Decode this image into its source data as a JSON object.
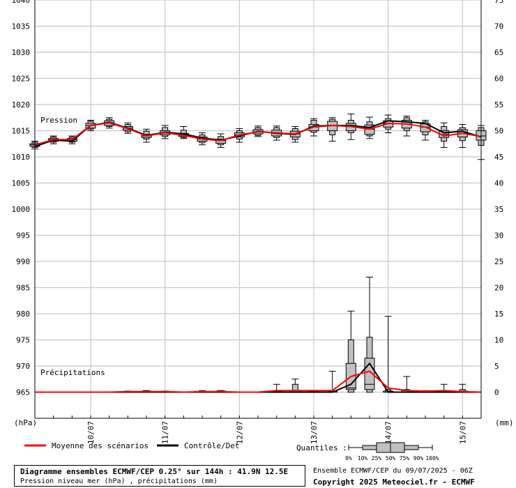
{
  "chart_data": {
    "type": "box",
    "title": "Diagramme ensembles ECMWF/CEP 0.25° sur 144h : 41.9N 12.5E",
    "subtitle": "Pression niveau mer (hPa) , précipitations (mm)",
    "run_info": "Ensemble ECMWF/CEP du 09/07/2025 - 06Z",
    "copyright": "Copyright 2025 Meteociel.fr - ECMWF",
    "left_axis": {
      "unit_label": "(hPa)",
      "range": [
        960,
        1040
      ],
      "ticks": [
        "1040",
        "1035",
        "1030",
        "1025",
        "1020",
        "1015",
        "1010",
        "1005",
        "1000",
        "995",
        "990",
        "985",
        "980",
        "975",
        "970",
        "965"
      ]
    },
    "right_axis": {
      "unit_label": "(mm)",
      "range": [
        -5,
        75
      ],
      "ticks": [
        "75",
        "70",
        "65",
        "60",
        "55",
        "50",
        "45",
        "40",
        "35",
        "30",
        "25",
        "20",
        "15",
        "10",
        "5",
        "0"
      ]
    },
    "x_axis": {
      "range_hours": [
        0,
        144
      ],
      "date_labels": [
        {
          "label": "10/07",
          "hour": 18
        },
        {
          "label": "11/07",
          "hour": 42
        },
        {
          "label": "12/07",
          "hour": 66
        },
        {
          "label": "13/07",
          "hour": 90
        },
        {
          "label": "14/07",
          "hour": 114
        },
        {
          "label": "15/07",
          "hour": 138
        }
      ]
    },
    "panel_labels": {
      "pressure": "Pression",
      "precip": "Précipitations"
    },
    "grid": true,
    "legend": {
      "mean_label": "Moyenne des scénarios",
      "mean_color": "#ff0000",
      "control_label": "Contrôle/Det",
      "control_color": "#000000",
      "quantiles_label": "Quantiles :",
      "quantile_ticks": [
        "0%",
        "10%",
        "25%",
        "50%",
        "75%",
        "90%",
        "100%"
      ]
    },
    "box_color": "#c0c0c0",
    "pressure": {
      "hours": [
        0,
        6,
        12,
        18,
        24,
        30,
        36,
        42,
        48,
        54,
        60,
        66,
        72,
        78,
        84,
        90,
        96,
        102,
        108,
        114,
        120,
        126,
        132,
        138,
        144
      ],
      "mean": [
        1012.3,
        1013.3,
        1013.3,
        1016.0,
        1016.5,
        1015.4,
        1014.0,
        1014.6,
        1014.1,
        1013.4,
        1013.1,
        1014.2,
        1014.8,
        1014.6,
        1014.4,
        1015.7,
        1016.0,
        1015.8,
        1015.3,
        1016.4,
        1016.3,
        1015.7,
        1014.0,
        1014.5,
        1013.9
      ],
      "control": [
        1012.0,
        1013.2,
        1013.0,
        1016.0,
        1016.6,
        1015.5,
        1014.1,
        1014.7,
        1014.4,
        1013.6,
        1013.2,
        1014.0,
        1014.9,
        1014.5,
        1014.3,
        1015.9,
        1016.0,
        1016.0,
        1015.6,
        1016.9,
        1016.7,
        1016.4,
        1014.6,
        1014.9,
        1013.8
      ],
      "q0": [
        1011.5,
        1012.5,
        1012.5,
        1015.0,
        1015.5,
        1014.5,
        1012.8,
        1013.5,
        1013.5,
        1012.3,
        1011.8,
        1012.8,
        1013.9,
        1013.2,
        1012.8,
        1014.0,
        1013.0,
        1013.3,
        1013.5,
        1014.6,
        1014.0,
        1013.2,
        1011.8,
        1011.8,
        1009.5
      ],
      "q10": [
        1011.8,
        1012.8,
        1012.8,
        1015.3,
        1015.8,
        1014.8,
        1013.4,
        1013.9,
        1013.7,
        1012.7,
        1012.3,
        1013.4,
        1014.1,
        1013.7,
        1013.3,
        1014.7,
        1014.2,
        1014.6,
        1014.0,
        1015.3,
        1015.0,
        1014.2,
        1013.0,
        1013.1,
        1012.2
      ],
      "q25": [
        1012.0,
        1013.0,
        1013.0,
        1015.5,
        1016.0,
        1015.1,
        1013.7,
        1014.2,
        1013.9,
        1013.0,
        1012.6,
        1013.8,
        1014.4,
        1014.0,
        1013.8,
        1015.0,
        1015.0,
        1015.0,
        1014.3,
        1015.7,
        1015.5,
        1014.8,
        1013.7,
        1013.8,
        1013.2
      ],
      "median": [
        1012.3,
        1013.3,
        1013.3,
        1016.0,
        1016.5,
        1015.5,
        1014.0,
        1014.6,
        1014.1,
        1013.4,
        1013.1,
        1014.2,
        1014.8,
        1014.6,
        1014.4,
        1015.7,
        1016.0,
        1015.8,
        1015.3,
        1016.4,
        1016.3,
        1015.7,
        1014.3,
        1014.5,
        1014.0
      ],
      "q75": [
        1012.5,
        1013.5,
        1013.5,
        1016.4,
        1016.9,
        1015.8,
        1014.3,
        1015.0,
        1014.5,
        1013.8,
        1013.4,
        1014.6,
        1015.2,
        1015.1,
        1014.9,
        1016.2,
        1016.8,
        1016.4,
        1016.1,
        1016.9,
        1017.0,
        1016.3,
        1015.0,
        1015.2,
        1015.0
      ],
      "q90": [
        1012.8,
        1013.8,
        1013.8,
        1016.8,
        1017.2,
        1016.2,
        1014.9,
        1015.6,
        1015.1,
        1014.2,
        1013.9,
        1015.0,
        1015.6,
        1015.6,
        1015.4,
        1017.0,
        1017.2,
        1017.0,
        1016.7,
        1017.3,
        1017.5,
        1016.7,
        1015.8,
        1015.6,
        1015.6
      ],
      "q100": [
        1013.0,
        1014.0,
        1014.0,
        1017.0,
        1017.5,
        1016.5,
        1015.3,
        1016.0,
        1015.8,
        1014.6,
        1014.4,
        1015.4,
        1015.9,
        1015.9,
        1015.8,
        1017.3,
        1017.5,
        1018.2,
        1017.6,
        1018.0,
        1017.8,
        1017.0,
        1016.5,
        1016.2,
        1016.0
      ]
    },
    "precipitation": {
      "hours": [
        0,
        6,
        12,
        18,
        24,
        30,
        36,
        42,
        48,
        54,
        60,
        66,
        72,
        78,
        84,
        90,
        96,
        102,
        108,
        114,
        120,
        126,
        132,
        138,
        144
      ],
      "mean": [
        0,
        0,
        0,
        0,
        0,
        0.1,
        0.1,
        0.1,
        0,
        0.1,
        0.1,
        0,
        0,
        0.3,
        0.3,
        0.3,
        0.3,
        3.0,
        4.0,
        0.8,
        0.3,
        0.2,
        0.3,
        0.1,
        0
      ],
      "control": [
        0,
        0,
        0,
        0,
        0,
        0,
        0,
        0,
        0,
        0,
        0,
        0,
        0,
        0,
        0,
        0,
        0,
        1.5,
        5.5,
        0,
        0,
        0,
        0,
        0,
        0
      ],
      "q0": [
        0,
        0,
        0,
        0,
        0,
        0,
        0,
        0,
        0,
        0,
        0,
        0,
        0,
        0,
        0,
        0,
        0,
        0,
        0,
        0,
        0,
        0,
        0,
        0,
        0
      ],
      "q10": [
        0,
        0,
        0,
        0,
        0,
        0,
        0,
        0,
        0,
        0,
        0,
        0,
        0,
        0,
        0,
        0,
        0,
        0,
        0,
        0,
        0,
        0,
        0,
        0,
        0
      ],
      "q25": [
        0,
        0,
        0,
        0,
        0,
        0,
        0,
        0,
        0,
        0,
        0,
        0,
        0,
        0,
        0,
        0,
        0,
        0.5,
        0.5,
        0,
        0,
        0,
        0,
        0,
        0
      ],
      "median": [
        0,
        0,
        0,
        0,
        0,
        0,
        0,
        0,
        0,
        0,
        0,
        0,
        0,
        0,
        0,
        0,
        0,
        0.8,
        1.5,
        0,
        0,
        0,
        0,
        0,
        0
      ],
      "q75": [
        0,
        0,
        0,
        0,
        0,
        0.1,
        0.2,
        0.1,
        0,
        0.1,
        0.2,
        0,
        0,
        0.2,
        0.3,
        0.2,
        0.1,
        5.5,
        6.5,
        0.2,
        0.3,
        0.1,
        0.2,
        0.2,
        0
      ],
      "q90": [
        0,
        0,
        0,
        0,
        0,
        0.1,
        0.2,
        0.1,
        0,
        0.1,
        0.2,
        0,
        0,
        0.2,
        1.5,
        0.3,
        0.2,
        10.0,
        10.5,
        0.5,
        0.5,
        0.2,
        0.2,
        0.5,
        0
      ],
      "q100": [
        0,
        0,
        0,
        0,
        0,
        0.2,
        0.3,
        0.2,
        0,
        0.3,
        0.3,
        0,
        0,
        1.5,
        2.5,
        0.3,
        4.0,
        15.5,
        22.0,
        14.5,
        3.0,
        0.3,
        1.5,
        1.5,
        0
      ]
    }
  }
}
